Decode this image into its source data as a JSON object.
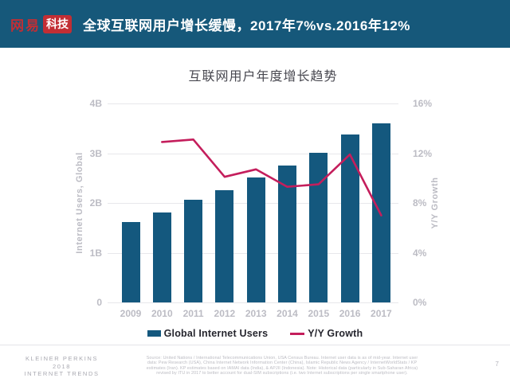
{
  "header": {
    "logo_brand": "网易",
    "logo_badge": "科技",
    "title": "全球互联网用户增长缓慢，2017年7%vs.2016年12%"
  },
  "colors": {
    "header_bg": "#16587A",
    "logo_red": "#C22E34",
    "bar": "#14587E",
    "line": "#C41E5C",
    "gridline": "#E7E7EB"
  },
  "chart_data": {
    "type": "bar",
    "title": "互联网用户年度增长趋势",
    "categories": [
      "2009",
      "2010",
      "2011",
      "2012",
      "2013",
      "2014",
      "2015",
      "2016",
      "2017"
    ],
    "series": [
      {
        "name": "Global Internet Users",
        "type": "bar",
        "axis": "left",
        "unit": "billions",
        "values": [
          1.61,
          1.81,
          2.06,
          2.26,
          2.52,
          2.75,
          3.01,
          3.38,
          3.6
        ],
        "color": "#14587E"
      },
      {
        "name": "Y/Y Growth",
        "type": "line",
        "axis": "right",
        "unit": "percent",
        "values": [
          null,
          12.9,
          13.1,
          10.1,
          10.7,
          9.3,
          9.5,
          11.9,
          7.0
        ],
        "color": "#C41E5C"
      }
    ],
    "left_axis": {
      "label": "Internet Users, Global",
      "ticks": [
        "4B",
        "3B",
        "2B",
        "1B",
        "0"
      ],
      "range": [
        0,
        4
      ]
    },
    "right_axis": {
      "label": "Y/Y Growth",
      "ticks": [
        "16%",
        "12%",
        "8%",
        "4%",
        "0%"
      ],
      "range": [
        0,
        16
      ]
    },
    "grid": true,
    "legend_position": "bottom"
  },
  "footer": {
    "brand_lines": [
      "KLEINER PERKINS",
      "2018",
      "INTERNET TRENDS"
    ],
    "source_lines": [
      "Source: United Nations / International Telecommunications Union, USA Census Bureau. Internet user data is as of mid-year. Internet user",
      "data: Pew Research (USA), China Internet Network Information Center (China), Islamic Republic News Agency / InternetWorldStats / KP",
      "estimates (Iran). KP estimates based on IAMAI data (India), & APJII (Indonesia). Note: Historical data (particularly in Sub-Saharan Africa)",
      "revised by ITU in 2017 to better account for dual-SIM subscriptions (i.e. two Internet subscriptions per single smartphone user)."
    ],
    "page_number": "7"
  }
}
